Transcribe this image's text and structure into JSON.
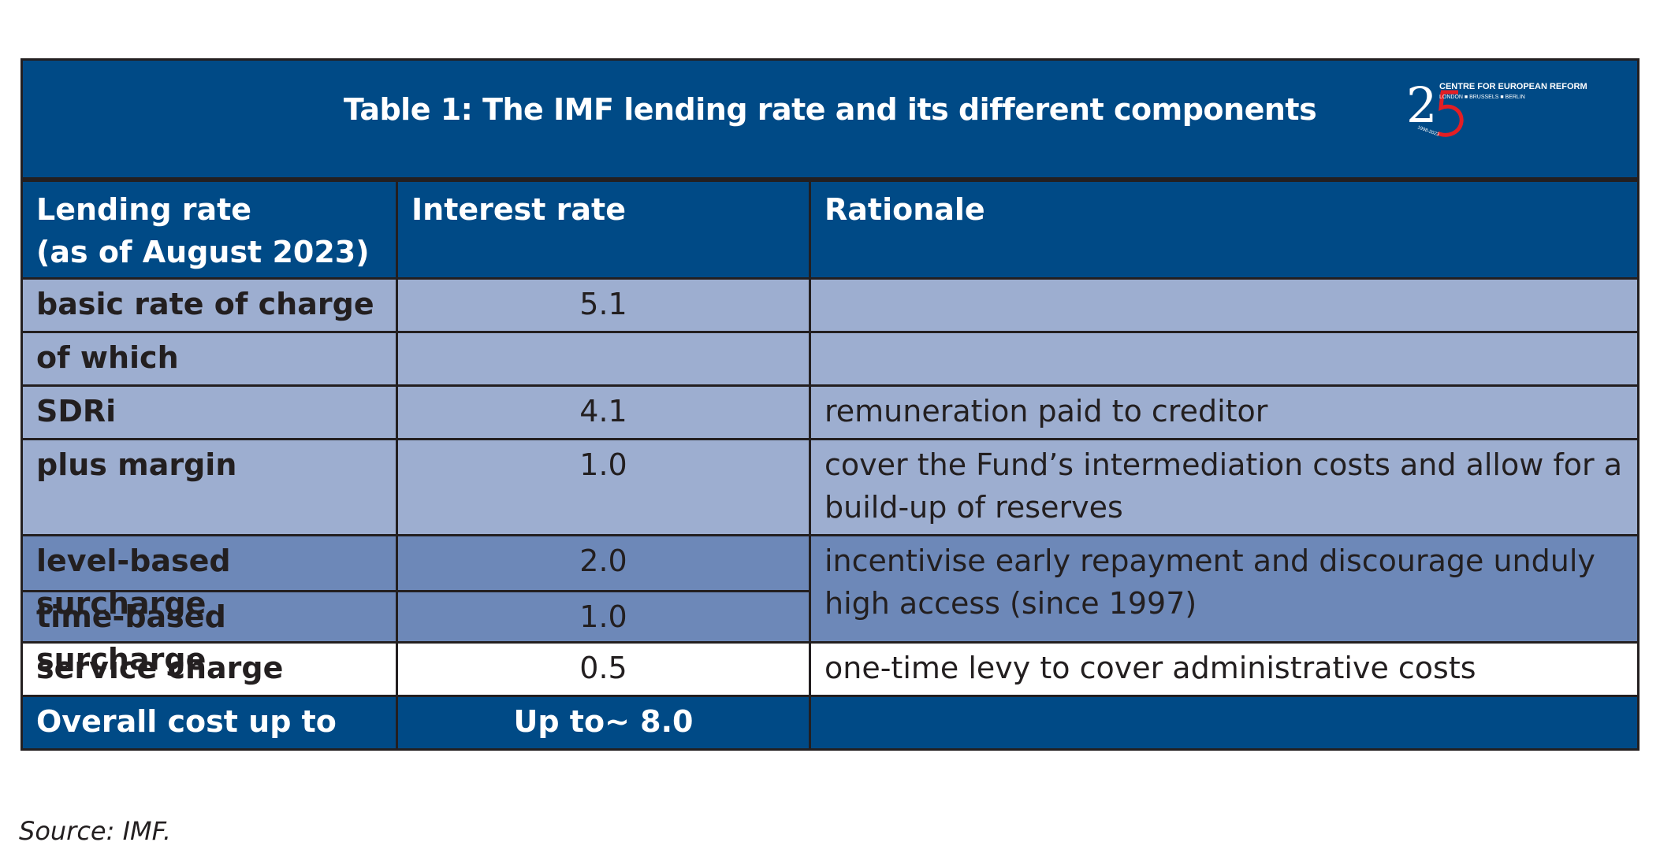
{
  "table": {
    "title": "Table 1: The IMF lending rate and its different components",
    "logo": {
      "number": "25",
      "org": "CENTRE FOR EUROPEAN REFORM",
      "cities": "LONDON ■ BRUSSELS ■ BERLIN",
      "years": "1998-2023"
    },
    "headers": {
      "col1_line1": "Lending rate",
      "col1_line2": "(as of August 2023)",
      "col2": "Interest rate",
      "col3": "Rationale"
    },
    "rows": [
      {
        "label": "basic rate of charge",
        "rate": "5.1",
        "rationale": ""
      },
      {
        "label": "of which",
        "rate": "",
        "rationale": ""
      },
      {
        "label": "SDRi",
        "rate": "4.1",
        "rationale": "remuneration paid to creditor"
      },
      {
        "label": "plus margin",
        "rate": "1.0",
        "rationale_line1": "cover the Fund’s intermediation costs and allow for a",
        "rationale_line2": "build-up of reserves"
      },
      {
        "label": "level-based surcharge",
        "rate": "2.0"
      },
      {
        "label": "time-based surcharge",
        "rate": "1.0"
      },
      {
        "label": "service charge",
        "rate": "0.5",
        "rationale": "one-time levy to cover administrative costs"
      }
    ],
    "surcharge_rationale_line1": "incentivise early repayment and discourage unduly",
    "surcharge_rationale_line2": "high access (since 1997)",
    "footer": {
      "label": "Overall cost up to",
      "rate": "Up to~ 8.0",
      "rationale": ""
    }
  },
  "source": "Source: IMF.",
  "colors": {
    "dark_blue": "#004a86",
    "light_blue": "#9daed0",
    "medium_blue": "#6d88b8",
    "logo_red": "#e31e24"
  }
}
